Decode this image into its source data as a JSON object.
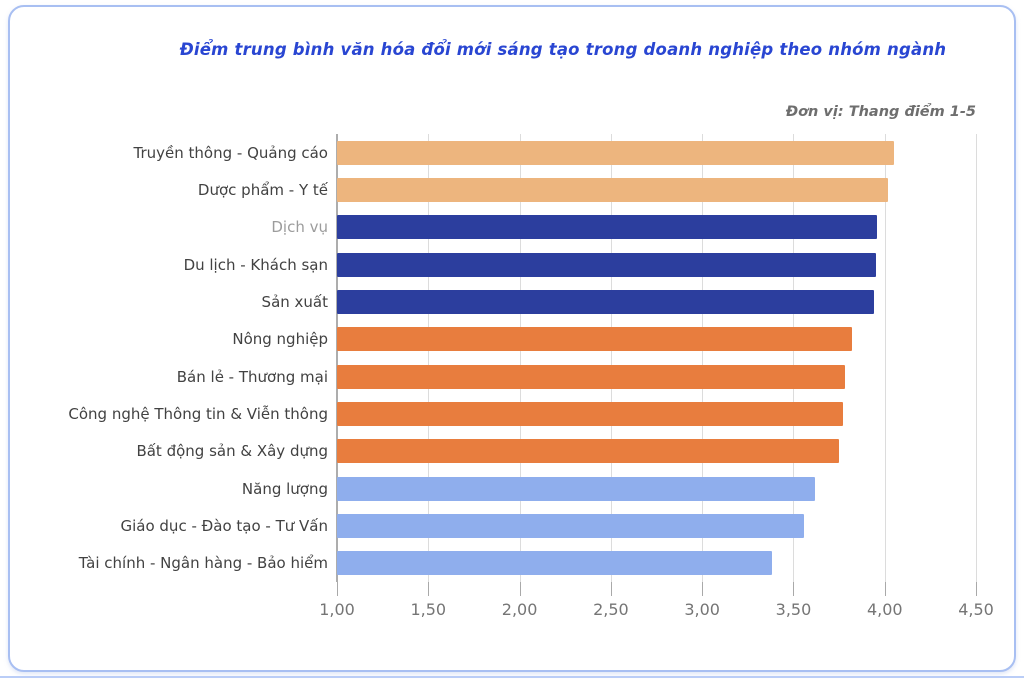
{
  "card": {
    "border_color": "#A8BFF2",
    "background": "#FFFFFF",
    "bottom_divider_color": "#BACDF7"
  },
  "colors": {
    "title": "#2946D2",
    "unit_label": "#6E6E6E",
    "category_label": "#424242",
    "category_label_muted": "#9C9C9C",
    "tick_label": "#757575",
    "gridline": "#DCDCDC",
    "axis_line": "#ADADAD",
    "tan": "#EDB57E",
    "dark_blue": "#2C3E9E",
    "orange": "#E87D3E",
    "light_blue": "#8FAEED"
  },
  "chart_data": {
    "type": "bar",
    "orientation": "horizontal",
    "title": "Điểm trung bình văn hóa đổi mới sáng tạo trong doanh nghiệp theo nhóm ngành",
    "unit_label": "Đơn vị: Thang điểm 1-5",
    "xlabel": "",
    "ylabel": "",
    "xlim": [
      1.0,
      4.5
    ],
    "grid": true,
    "legend": false,
    "categories": [
      "Truyền thông - Quảng cáo",
      "Dược phẩm - Y tế",
      "Dịch vụ",
      "Du lịch - Khách sạn",
      "Sản xuất",
      "Nông nghiệp",
      "Bán lẻ - Thương mại",
      "Công nghệ Thông tin & Viễn thông",
      "Bất động sản & Xây dựng",
      "Năng lượng",
      "Giáo dục - Đào tạo - Tư Vấn",
      "Tài chính - Ngân hàng - Bảo hiểm"
    ],
    "values": [
      4.05,
      4.02,
      3.96,
      3.95,
      3.94,
      3.82,
      3.78,
      3.77,
      3.75,
      3.62,
      3.56,
      3.38
    ],
    "bar_colors": [
      "#EDB57E",
      "#EDB57E",
      "#2C3E9E",
      "#2C3E9E",
      "#2C3E9E",
      "#E87D3E",
      "#E87D3E",
      "#E87D3E",
      "#E87D3E",
      "#8FAEED",
      "#8FAEED",
      "#8FAEED"
    ],
    "category_label_colors": [
      "#424242",
      "#424242",
      "#9C9C9C",
      "#424242",
      "#424242",
      "#424242",
      "#424242",
      "#424242",
      "#424242",
      "#424242",
      "#424242",
      "#424242"
    ],
    "x_ticks": [
      {
        "value": 1.0,
        "label": "1,00"
      },
      {
        "value": 1.5,
        "label": "1,50"
      },
      {
        "value": 2.0,
        "label": "2,00"
      },
      {
        "value": 2.5,
        "label": "2,50"
      },
      {
        "value": 3.0,
        "label": "3,00"
      },
      {
        "value": 3.5,
        "label": "3,50"
      },
      {
        "value": 4.0,
        "label": "4,00"
      },
      {
        "value": 4.5,
        "label": "4,50"
      }
    ]
  }
}
